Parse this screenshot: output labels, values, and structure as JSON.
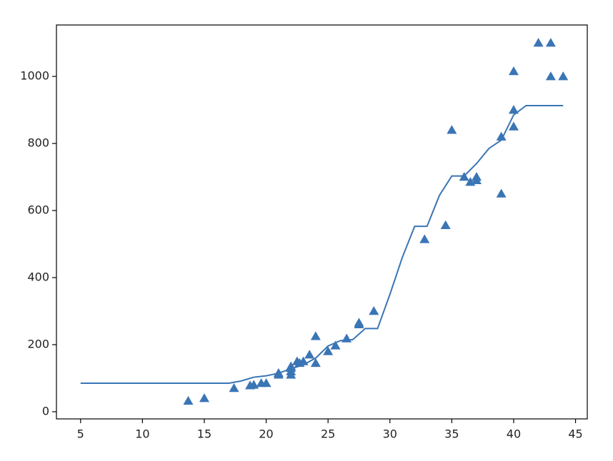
{
  "chart_data": {
    "type": "scatter",
    "xlim": [
      3.05,
      45.95
    ],
    "xticks": [
      5,
      10,
      15,
      20,
      25,
      30,
      35,
      40,
      45
    ],
    "ylim": [
      -21.4,
      1153.4
    ],
    "yticks": [
      0,
      200,
      400,
      600,
      800,
      1000
    ],
    "series": [
      {
        "type": "scatter",
        "color": "#3a75b5",
        "x": [
          13.7,
          15,
          17.4,
          18.7,
          19,
          19.6,
          20,
          21,
          21,
          22,
          22,
          22,
          22,
          22.5,
          22.7,
          23,
          23.5,
          24,
          24,
          25,
          25.6,
          26.5,
          27.5,
          27.5,
          28.7,
          32.8,
          34.5,
          35,
          36,
          36.5,
          37,
          37,
          39,
          39,
          40,
          40,
          40,
          42,
          43,
          43,
          44
        ],
        "values": [
          32,
          40,
          70,
          78,
          80,
          85,
          85,
          110,
          115,
          110,
          120,
          130,
          135,
          150,
          145,
          150,
          170,
          225,
          145,
          180,
          197,
          218,
          260,
          265,
          300,
          514,
          556,
          840,
          700,
          685,
          700,
          690,
          820,
          650,
          850,
          900,
          1015,
          1100,
          1100,
          1000,
          1000
        ]
      },
      {
        "type": "line",
        "color": "#3a75b5",
        "x": [
          5,
          6,
          7,
          8,
          9,
          10,
          11,
          12,
          13,
          14,
          15,
          16,
          17,
          18,
          19,
          20,
          21,
          22,
          23,
          24,
          25,
          26,
          27,
          28,
          29,
          30,
          31,
          32,
          33,
          34,
          35,
          36,
          37,
          38,
          39,
          40,
          41,
          42,
          43,
          44
        ],
        "values": [
          85,
          85,
          85,
          85,
          85,
          85,
          85,
          85,
          85,
          85,
          85,
          85,
          85,
          92,
          103,
          107,
          115,
          128,
          140,
          160,
          196,
          212,
          215,
          248,
          248,
          350,
          460,
          553,
          553,
          645,
          703,
          703,
          740,
          785,
          810,
          885,
          913,
          913,
          913,
          913
        ]
      }
    ]
  }
}
